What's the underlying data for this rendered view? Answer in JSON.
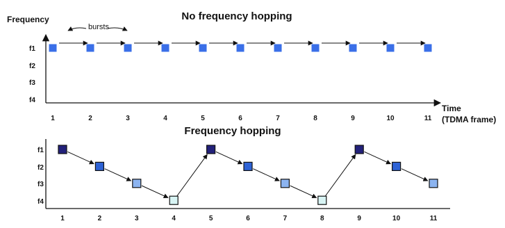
{
  "colors": {
    "burst_top": "#3a6fe8",
    "level_f1": "#23217a",
    "level_f2": "#2e63d6",
    "level_f3": "#8cb4f0",
    "level_f4": "#d8f4f4"
  },
  "top": {
    "title": "No frequency hopping",
    "y_label": "Frequency",
    "y_ticks": [
      "f1",
      "f2",
      "f3",
      "f4"
    ],
    "x_ticks": [
      "1",
      "2",
      "3",
      "4",
      "5",
      "6",
      "7",
      "8",
      "9",
      "10",
      "11"
    ],
    "x_label_line1": "Time",
    "x_label_line2": "(TDMA frame)",
    "annotation": "bursts",
    "series": [
      1,
      1,
      1,
      1,
      1,
      1,
      1,
      1,
      1,
      1,
      1
    ]
  },
  "bottom": {
    "title": "Frequency hopping",
    "y_ticks": [
      "f1",
      "f2",
      "f3",
      "f4"
    ],
    "x_ticks": [
      "1",
      "2",
      "3",
      "4",
      "5",
      "6",
      "7",
      "8",
      "9",
      "10",
      "11"
    ],
    "series": [
      1,
      2,
      3,
      4,
      1,
      2,
      3,
      4,
      1,
      2,
      3
    ]
  }
}
